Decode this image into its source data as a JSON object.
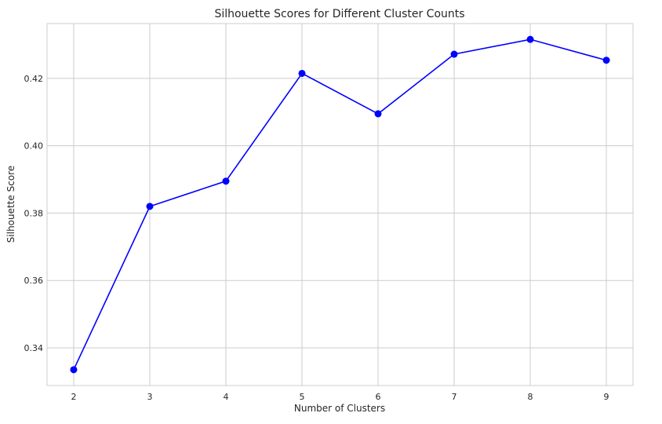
{
  "chart_data": {
    "type": "line",
    "title": "Silhouette Scores for Different Cluster Counts",
    "xlabel": "Number of Clusters",
    "ylabel": "Silhouette Score",
    "x": [
      2,
      3,
      4,
      5,
      6,
      7,
      8,
      9
    ],
    "series": [
      {
        "values": [
          0.3335,
          0.382,
          0.3895,
          0.4215,
          0.4095,
          0.4272,
          0.4316,
          0.4254
        ],
        "color": "#0000ff",
        "marker": "circle"
      }
    ],
    "xlim": [
      1.65,
      9.35
    ],
    "ylim": [
      0.3288,
      0.4363
    ],
    "x_ticks": [
      "2",
      "3",
      "4",
      "5",
      "6",
      "7",
      "8",
      "9"
    ],
    "y_ticks": [
      "0.34",
      "0.36",
      "0.38",
      "0.40",
      "0.42"
    ],
    "grid": true,
    "colors": {
      "grid": "#cccccc",
      "line": "#0000ff",
      "text": "#262626"
    }
  }
}
